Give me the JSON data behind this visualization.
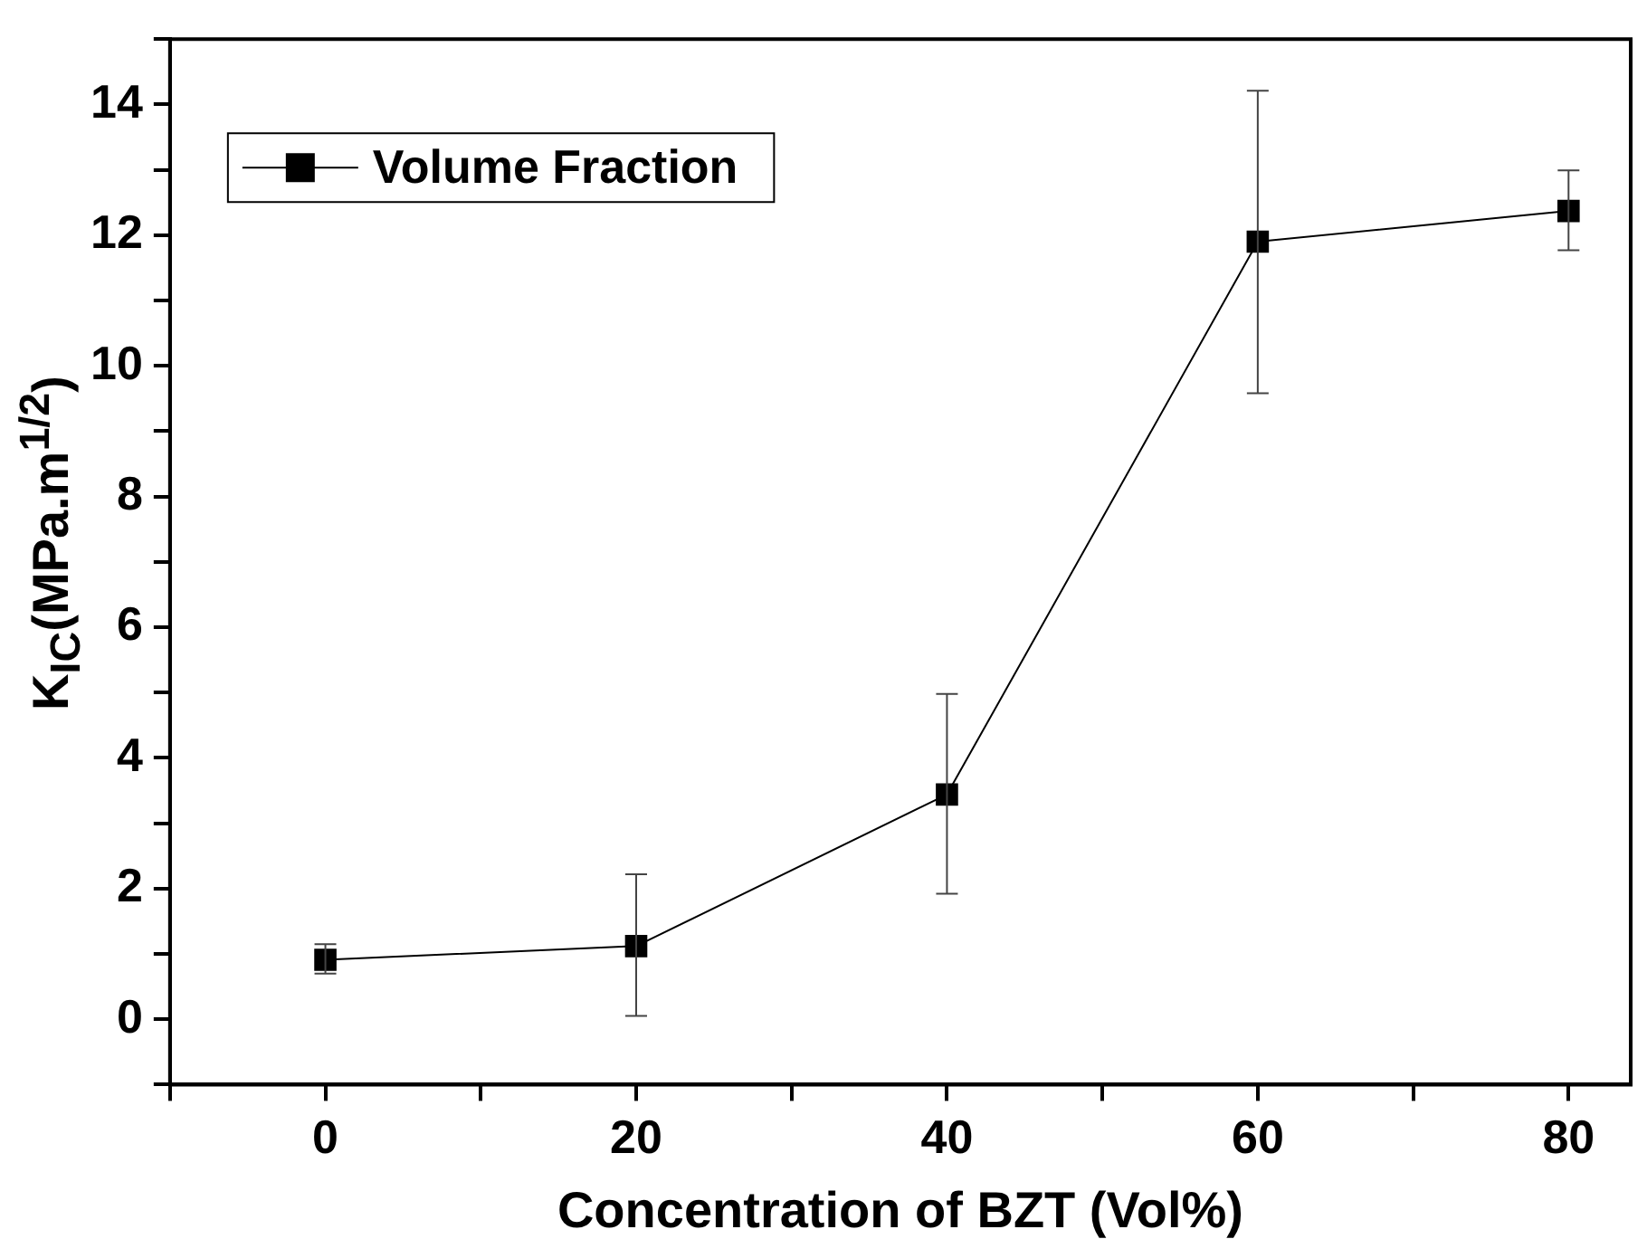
{
  "chart_data": {
    "type": "line",
    "xlabel": "Concentration of BZT (Vol%)",
    "ylabel": "K$_{IC}$(MPa.m$^{1/2}$)",
    "x": [
      0,
      20,
      40,
      60,
      80
    ],
    "series": [
      {
        "name": "Volume Fraction",
        "color": "#000000",
        "values": [
          0.91,
          1.12,
          3.44,
          11.9,
          12.37
        ],
        "errors": [
          [
            0.7,
            1.15
          ],
          [
            0.05,
            2.22
          ],
          [
            1.92,
            4.98
          ],
          [
            9.58,
            14.21
          ],
          [
            11.77,
            12.99
          ]
        ]
      }
    ],
    "xlim": [
      -10,
      84
    ],
    "ylim": [
      -1,
      15
    ],
    "xticks": [
      {
        "value": -10,
        "label": null
      },
      0,
      {
        "value": 10,
        "label": null
      },
      20,
      {
        "value": 30,
        "label": null
      },
      40,
      {
        "value": 50,
        "label": null
      },
      60,
      {
        "value": 70,
        "label": null
      },
      80
    ],
    "yticks": [
      {
        "value": -1,
        "label": null
      },
      0,
      {
        "value": 1,
        "label": null
      },
      2,
      {
        "value": 3,
        "label": null
      },
      4,
      {
        "value": 5,
        "label": null
      },
      6,
      {
        "value": 7,
        "label": null
      },
      8,
      {
        "value": 9,
        "label": null
      },
      10,
      {
        "value": 11,
        "label": null
      },
      12,
      {
        "value": 13,
        "label": null
      },
      14,
      {
        "value": 15,
        "label": null
      }
    ],
    "grid": false,
    "legend": "top left",
    "marker": "square",
    "line_style": "solid"
  }
}
